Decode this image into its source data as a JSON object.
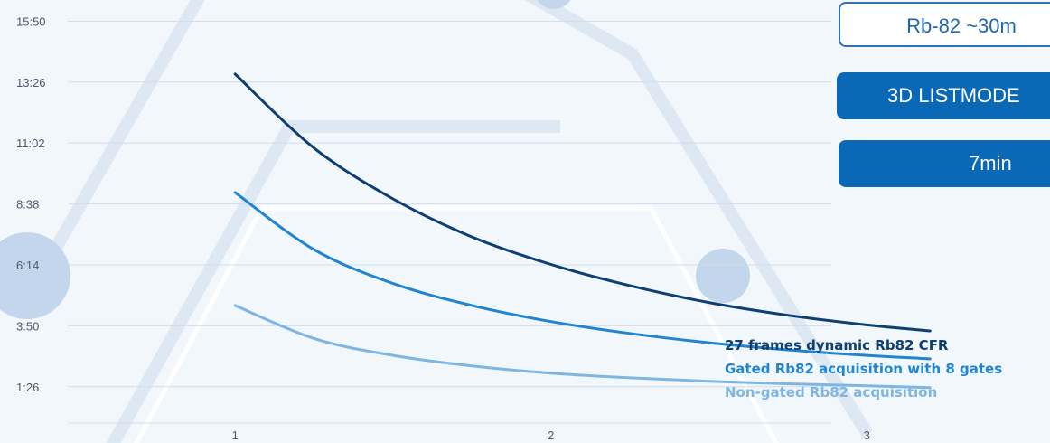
{
  "panel": {
    "isotope_label": "Rb-82 ~30m",
    "mode_label": "3D LISTMODE",
    "time_label": "7min"
  },
  "colors": {
    "background": "#f2f7fc",
    "grid": "#d3dde8",
    "accent": "#0b68b6"
  },
  "chart_data": {
    "type": "line",
    "title": "",
    "xlabel": "",
    "ylabel": "",
    "x_ticks": [
      "1",
      "2",
      "3"
    ],
    "xlim": [
      0.47,
      3.58
    ],
    "y_ticks": [
      "1:26",
      "3:50",
      "6:14",
      "8:38",
      "11:02",
      "13:26",
      "15:50"
    ],
    "y_tick_seconds": [
      86,
      230,
      374,
      518,
      662,
      806,
      950
    ],
    "ylim_seconds": [
      0,
      1000
    ],
    "grid": true,
    "legend": "labels at line ends, right",
    "series": [
      {
        "name": "27 frames dynamic Rb82 CFR",
        "color": "#0d3f72",
        "x": [
          1.0,
          1.25,
          1.5,
          1.75,
          2.0,
          2.25,
          2.5,
          2.75,
          3.0,
          3.2
        ],
        "y": [
          825,
          650,
          530,
          440,
          375,
          325,
          285,
          255,
          232,
          218
        ]
      },
      {
        "name": "Gated Rb82 acquisition with 8 gates",
        "color": "#2184d0",
        "x": [
          1.0,
          1.25,
          1.5,
          1.75,
          2.0,
          2.25,
          2.5,
          2.75,
          3.0,
          3.2
        ],
        "y": [
          545,
          410,
          330,
          278,
          240,
          212,
          190,
          173,
          160,
          152
        ]
      },
      {
        "name": "Non-gated Rb82 acquisition",
        "color": "#7db5e3",
        "x": [
          1.0,
          1.25,
          1.5,
          1.75,
          2.0,
          2.25,
          2.5,
          2.75,
          3.0,
          3.2
        ],
        "y": [
          278,
          200,
          160,
          135,
          118,
          107,
          99,
          93,
          88,
          84
        ]
      }
    ]
  }
}
